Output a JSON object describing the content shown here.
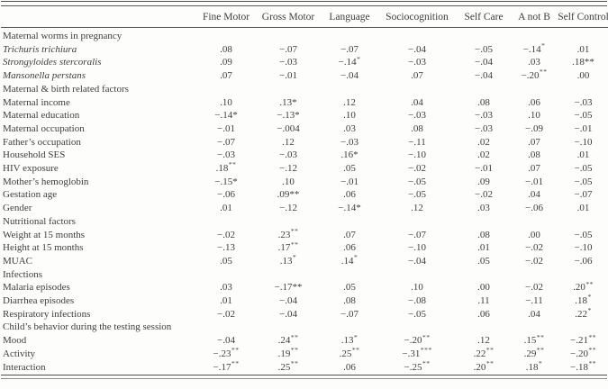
{
  "table": {
    "row_header": "",
    "columns": [
      "Fine Motor",
      "Gross Motor",
      "Language",
      "Sociocognition",
      "Self Care",
      "A not B",
      "Self Control"
    ],
    "rows": [
      {
        "type": "section",
        "label": "Maternal worms in pregnancy"
      },
      {
        "type": "data",
        "label": "Trichuris trichiura",
        "italic": true,
        "cells": [
          {
            "v": ".08"
          },
          {
            "v": "−.07"
          },
          {
            "v": "−.07"
          },
          {
            "v": "−.04"
          },
          {
            "v": "−.05"
          },
          {
            "v": "−.14",
            "sup": "*"
          },
          {
            "v": ".01"
          }
        ]
      },
      {
        "type": "data",
        "label": "Strongyloides stercoralis",
        "italic": true,
        "cells": [
          {
            "v": ".09"
          },
          {
            "v": "−.03"
          },
          {
            "v": "−.14",
            "sup": "*"
          },
          {
            "v": "−.03"
          },
          {
            "v": "−.04"
          },
          {
            "v": ".03"
          },
          {
            "v": ".18**"
          }
        ]
      },
      {
        "type": "data",
        "label": "Mansonella perstans",
        "italic": true,
        "cells": [
          {
            "v": ".07"
          },
          {
            "v": "−.01"
          },
          {
            "v": "−.04"
          },
          {
            "v": ".07"
          },
          {
            "v": "−.04"
          },
          {
            "v": "−.20",
            "sup": "**"
          },
          {
            "v": ".00"
          }
        ]
      },
      {
        "type": "section",
        "label": "Maternal & birth related factors"
      },
      {
        "type": "data",
        "label": "Maternal income",
        "italic": false,
        "cells": [
          {
            "v": ".10"
          },
          {
            "v": ".13*"
          },
          {
            "v": ".12"
          },
          {
            "v": ".04"
          },
          {
            "v": ".08"
          },
          {
            "v": ".06"
          },
          {
            "v": "−.03"
          }
        ]
      },
      {
        "type": "data",
        "label": "Maternal education",
        "italic": false,
        "cells": [
          {
            "v": "−.14*"
          },
          {
            "v": "−.13*"
          },
          {
            "v": ".10"
          },
          {
            "v": "−.03"
          },
          {
            "v": "−.03"
          },
          {
            "v": ".10"
          },
          {
            "v": "−.05"
          }
        ]
      },
      {
        "type": "data",
        "label": "Maternal occupation",
        "italic": false,
        "cells": [
          {
            "v": "−.01"
          },
          {
            "v": "−.004"
          },
          {
            "v": ".03"
          },
          {
            "v": ".08"
          },
          {
            "v": "−.03"
          },
          {
            "v": "−.09"
          },
          {
            "v": "−.01"
          }
        ]
      },
      {
        "type": "data",
        "label": "Father’s occupation",
        "italic": false,
        "cells": [
          {
            "v": "−.07"
          },
          {
            "v": ".12"
          },
          {
            "v": "−.03"
          },
          {
            "v": "−.11"
          },
          {
            "v": ".02"
          },
          {
            "v": ".07"
          },
          {
            "v": "−.10"
          }
        ]
      },
      {
        "type": "data",
        "label": "Household SES",
        "italic": false,
        "cells": [
          {
            "v": "−.03"
          },
          {
            "v": "−.03"
          },
          {
            "v": ".16*"
          },
          {
            "v": "−.10"
          },
          {
            "v": ".02"
          },
          {
            "v": ".08"
          },
          {
            "v": ".01"
          }
        ]
      },
      {
        "type": "data",
        "label": "HIV exposure",
        "italic": false,
        "cells": [
          {
            "v": ".18",
            "sup": "**"
          },
          {
            "v": "−.12"
          },
          {
            "v": ".05"
          },
          {
            "v": "−.02"
          },
          {
            "v": "−.01"
          },
          {
            "v": ".07"
          },
          {
            "v": "−.05"
          }
        ]
      },
      {
        "type": "data",
        "label": "Mother’s hemoglobin",
        "italic": false,
        "cells": [
          {
            "v": "−.15*"
          },
          {
            "v": ".10"
          },
          {
            "v": "−.01"
          },
          {
            "v": "−.05"
          },
          {
            "v": ".09"
          },
          {
            "v": "−.01"
          },
          {
            "v": "−.05"
          }
        ]
      },
      {
        "type": "data",
        "label": "Gestation age",
        "italic": false,
        "cells": [
          {
            "v": "−.06"
          },
          {
            "v": ".09**"
          },
          {
            "v": ".06"
          },
          {
            "v": "−.05"
          },
          {
            "v": "−.02"
          },
          {
            "v": ".04"
          },
          {
            "v": "−.07"
          }
        ]
      },
      {
        "type": "data",
        "label": "Gender",
        "italic": false,
        "cells": [
          {
            "v": ".01"
          },
          {
            "v": "−.12"
          },
          {
            "v": "−.14*"
          },
          {
            "v": ".12"
          },
          {
            "v": ".03"
          },
          {
            "v": "−.06"
          },
          {
            "v": ".01"
          }
        ]
      },
      {
        "type": "section",
        "label": "Nutritional factors"
      },
      {
        "type": "data",
        "label": "Weight at 15 months",
        "italic": false,
        "cells": [
          {
            "v": "−.02"
          },
          {
            "v": ".23",
            "sup": "**"
          },
          {
            "v": ".07"
          },
          {
            "v": "−.07"
          },
          {
            "v": ".08"
          },
          {
            "v": ".00"
          },
          {
            "v": "−.05"
          }
        ]
      },
      {
        "type": "data",
        "label": "Height at 15 months",
        "italic": false,
        "cells": [
          {
            "v": "−.13"
          },
          {
            "v": ".17",
            "sup": "**"
          },
          {
            "v": ".06"
          },
          {
            "v": "−.10"
          },
          {
            "v": ".01"
          },
          {
            "v": "−.02"
          },
          {
            "v": "−.10"
          }
        ]
      },
      {
        "type": "data",
        "label": "MUAC",
        "italic": false,
        "cells": [
          {
            "v": ".05"
          },
          {
            "v": ".13",
            "sup": "*"
          },
          {
            "v": ".14",
            "sup": "*"
          },
          {
            "v": "−.04"
          },
          {
            "v": ".05"
          },
          {
            "v": "−.02"
          },
          {
            "v": "−.06"
          }
        ]
      },
      {
        "type": "section",
        "label": "Infections"
      },
      {
        "type": "data",
        "label": "Malaria episodes",
        "italic": false,
        "cells": [
          {
            "v": ".03"
          },
          {
            "v": "−.17**"
          },
          {
            "v": ".05"
          },
          {
            "v": ".10"
          },
          {
            "v": ".00"
          },
          {
            "v": "−.02"
          },
          {
            "v": ".20",
            "sup": "**"
          }
        ]
      },
      {
        "type": "data",
        "label": "Diarrhea episodes",
        "italic": false,
        "cells": [
          {
            "v": ".01"
          },
          {
            "v": "−.04"
          },
          {
            "v": ".08"
          },
          {
            "v": "−.08"
          },
          {
            "v": ".11"
          },
          {
            "v": "−.11"
          },
          {
            "v": ".18",
            "sup": "*"
          }
        ]
      },
      {
        "type": "data",
        "label": "Respiratory infections",
        "italic": false,
        "cells": [
          {
            "v": "−.02"
          },
          {
            "v": "−.04"
          },
          {
            "v": "−.07"
          },
          {
            "v": "−.05"
          },
          {
            "v": ".06"
          },
          {
            "v": ".04"
          },
          {
            "v": ".22",
            "sup": "*"
          }
        ]
      },
      {
        "type": "section",
        "label": "Child’s behavior during the testing session"
      },
      {
        "type": "data",
        "label": "Mood",
        "italic": false,
        "cells": [
          {
            "v": "−.04"
          },
          {
            "v": ".24",
            "sup": "**"
          },
          {
            "v": ".13",
            "sup": "*"
          },
          {
            "v": "−.20",
            "sup": "**"
          },
          {
            "v": ".12"
          },
          {
            "v": ".15",
            "sup": "**"
          },
          {
            "v": "−.21",
            "sup": "**"
          }
        ]
      },
      {
        "type": "data",
        "label": "Activity",
        "italic": false,
        "cells": [
          {
            "v": "−.23",
            "sup": "**"
          },
          {
            "v": ".19",
            "sup": "**"
          },
          {
            "v": ".25",
            "sup": "**"
          },
          {
            "v": "−.31",
            "sup": "***"
          },
          {
            "v": ".22",
            "sup": "**"
          },
          {
            "v": ".29",
            "sup": "**"
          },
          {
            "v": "−.20",
            "sup": "**"
          }
        ]
      },
      {
        "type": "data",
        "label": "Interaction",
        "italic": false,
        "cells": [
          {
            "v": "−.17",
            "sup": "**"
          },
          {
            "v": ".25",
            "sup": "**"
          },
          {
            "v": ".06"
          },
          {
            "v": "−.25",
            "sup": "**"
          },
          {
            "v": ".20",
            "sup": "**"
          },
          {
            "v": ".18",
            "sup": "*"
          },
          {
            "v": "−.18",
            "sup": "**"
          }
        ]
      }
    ]
  }
}
